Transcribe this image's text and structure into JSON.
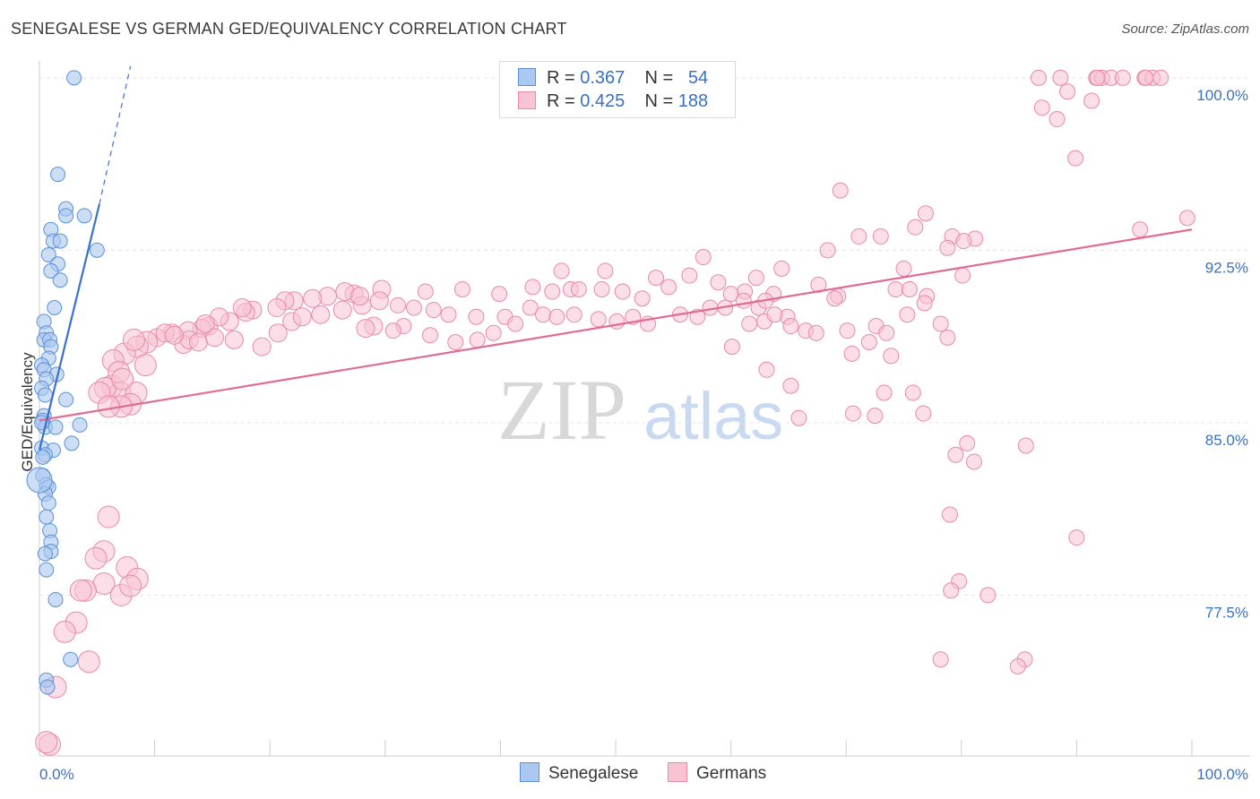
{
  "title": "SENEGALESE VS GERMAN GED/EQUIVALENCY CORRELATION CHART",
  "source": "Source: ZipAtlas.com",
  "watermark": {
    "zip": "ZIP",
    "atlas": "atlas"
  },
  "legend": {
    "row1": {
      "r_label": "R =",
      "r_value": "0.367",
      "n_label": "N =",
      "n_value": "54"
    },
    "row2": {
      "r_label": "R =",
      "r_value": "0.425",
      "n_label": "N =",
      "n_value": "188"
    }
  },
  "colors": {
    "blue_fill": "#aac8f0",
    "blue_stroke": "#5b8fd6",
    "blue_line": "#3a70d0",
    "pink_fill": "#f8c3d3",
    "pink_stroke": "#e889a8",
    "pink_line": "#e06c95",
    "axis_text": "#3a70c4",
    "grid": "#e3e3e3"
  },
  "chart_data": {
    "type": "scatter",
    "title": "SENEGALESE VS GERMAN GED/EQUIVALENCY CORRELATION CHART",
    "xlabel": "",
    "ylabel": "GED/Equivalency",
    "xlim": [
      0,
      100
    ],
    "ylim": [
      70.5,
      100.5
    ],
    "x_tick_labels": [
      "0.0%",
      "100.0%"
    ],
    "y_ticks": [
      77.5,
      85.0,
      92.5,
      100.0
    ],
    "y_tick_labels": [
      "77.5%",
      "85.0%",
      "92.5%",
      "100.0%"
    ],
    "legend_position": "bottom",
    "series": [
      {
        "name": "Senegalese",
        "r": 0.367,
        "n": 54,
        "trend": {
          "x0": 0.0,
          "y0": 83.8,
          "x1": 5.2,
          "y1": 94.5,
          "dash_to_x": 7.9,
          "dash_to_y": 100.5
        },
        "points": [
          [
            3.0,
            100.0
          ],
          [
            1.6,
            95.8
          ],
          [
            2.3,
            94.3
          ],
          [
            2.3,
            94.0
          ],
          [
            3.9,
            94.0
          ],
          [
            1.0,
            93.4
          ],
          [
            1.2,
            92.9
          ],
          [
            1.8,
            92.9
          ],
          [
            5.0,
            92.5
          ],
          [
            0.8,
            92.3
          ],
          [
            1.6,
            91.9
          ],
          [
            1.0,
            91.6
          ],
          [
            1.8,
            91.2
          ],
          [
            1.3,
            90.0
          ],
          [
            0.4,
            89.4
          ],
          [
            0.6,
            88.9
          ],
          [
            0.4,
            88.6
          ],
          [
            0.9,
            88.6
          ],
          [
            1.0,
            88.3
          ],
          [
            0.8,
            87.8
          ],
          [
            0.2,
            87.5
          ],
          [
            0.4,
            87.3
          ],
          [
            1.5,
            87.1
          ],
          [
            0.6,
            86.9
          ],
          [
            0.2,
            86.5
          ],
          [
            0.5,
            86.2
          ],
          [
            2.3,
            86.0
          ],
          [
            0.4,
            85.3
          ],
          [
            0.3,
            85.1
          ],
          [
            0.5,
            84.8
          ],
          [
            1.4,
            84.8
          ],
          [
            3.5,
            84.9
          ],
          [
            2.8,
            84.1
          ],
          [
            0.2,
            83.9
          ],
          [
            1.2,
            83.8
          ],
          [
            0.5,
            83.6
          ],
          [
            0.3,
            83.5
          ],
          [
            0.3,
            82.7
          ],
          [
            0.6,
            82.3
          ],
          [
            0.8,
            82.2
          ],
          [
            0.5,
            81.9
          ],
          [
            0.8,
            81.5
          ],
          [
            0.6,
            80.9
          ],
          [
            0.9,
            80.3
          ],
          [
            1.0,
            79.8
          ],
          [
            1.0,
            79.4
          ],
          [
            0.5,
            79.3
          ],
          [
            0.6,
            78.6
          ],
          [
            1.4,
            77.3
          ],
          [
            2.7,
            74.7
          ],
          [
            0.6,
            73.8
          ],
          [
            0.7,
            73.5
          ],
          [
            0.0,
            82.5
          ],
          [
            0.2,
            85.0
          ]
        ]
      },
      {
        "name": "Germans",
        "r": 0.425,
        "n": 188,
        "trend": {
          "x0": 0.0,
          "y0": 85.1,
          "x1": 100.0,
          "y1": 93.4
        },
        "points": [
          [
            86.7,
            100.0
          ],
          [
            88.6,
            100.0
          ],
          [
            91.7,
            100.0
          ],
          [
            92.2,
            100.0
          ],
          [
            93.0,
            100.0
          ],
          [
            94.0,
            100.0
          ],
          [
            95.9,
            100.0
          ],
          [
            96.6,
            100.0
          ],
          [
            97.3,
            100.0
          ],
          [
            96.0,
            100.0
          ],
          [
            91.8,
            100.0
          ],
          [
            89.2,
            99.4
          ],
          [
            87.0,
            98.7
          ],
          [
            91.3,
            99.0
          ],
          [
            88.3,
            98.2
          ],
          [
            89.9,
            96.5
          ],
          [
            69.5,
            95.1
          ],
          [
            99.6,
            93.9
          ],
          [
            95.5,
            93.4
          ],
          [
            76.9,
            94.1
          ],
          [
            76.0,
            93.5
          ],
          [
            71.1,
            93.1
          ],
          [
            73.0,
            93.1
          ],
          [
            79.2,
            93.1
          ],
          [
            81.2,
            93.0
          ],
          [
            80.2,
            92.9
          ],
          [
            78.8,
            92.6
          ],
          [
            68.4,
            92.5
          ],
          [
            57.6,
            92.2
          ],
          [
            75.0,
            91.7
          ],
          [
            64.4,
            91.7
          ],
          [
            80.1,
            91.4
          ],
          [
            56.4,
            91.4
          ],
          [
            58.9,
            91.1
          ],
          [
            67.6,
            91.0
          ],
          [
            45.3,
            91.6
          ],
          [
            49.1,
            91.6
          ],
          [
            53.5,
            91.3
          ],
          [
            62.2,
            91.3
          ],
          [
            42.8,
            90.9
          ],
          [
            46.1,
            90.8
          ],
          [
            54.6,
            90.9
          ],
          [
            61.2,
            90.7
          ],
          [
            69.3,
            90.5
          ],
          [
            74.3,
            90.8
          ],
          [
            75.5,
            90.8
          ],
          [
            60.0,
            90.6
          ],
          [
            63.7,
            90.6
          ],
          [
            69.0,
            90.4
          ],
          [
            77.0,
            90.5
          ],
          [
            52.3,
            90.4
          ],
          [
            50.6,
            90.7
          ],
          [
            48.8,
            90.8
          ],
          [
            46.8,
            90.8
          ],
          [
            44.5,
            90.7
          ],
          [
            39.9,
            90.6
          ],
          [
            36.7,
            90.8
          ],
          [
            33.5,
            90.7
          ],
          [
            29.7,
            90.8
          ],
          [
            27.3,
            90.6
          ],
          [
            26.5,
            90.7
          ],
          [
            25.0,
            90.5
          ],
          [
            23.7,
            90.4
          ],
          [
            22.1,
            90.3
          ],
          [
            21.3,
            90.3
          ],
          [
            20.6,
            90.0
          ],
          [
            18.5,
            89.9
          ],
          [
            17.9,
            89.8
          ],
          [
            16.5,
            89.4
          ],
          [
            14.7,
            89.2
          ],
          [
            14.1,
            89.1
          ],
          [
            12.9,
            89.0
          ],
          [
            11.5,
            88.9
          ],
          [
            10.2,
            88.7
          ],
          [
            9.3,
            88.5
          ],
          [
            8.5,
            88.3
          ],
          [
            7.4,
            88.0
          ],
          [
            6.4,
            87.7
          ],
          [
            8.2,
            88.6
          ],
          [
            10.9,
            88.9
          ],
          [
            12.5,
            88.4
          ],
          [
            13.0,
            88.6
          ],
          [
            13.8,
            88.5
          ],
          [
            15.2,
            88.7
          ],
          [
            16.9,
            88.6
          ],
          [
            19.3,
            88.3
          ],
          [
            20.7,
            88.9
          ],
          [
            21.9,
            89.4
          ],
          [
            22.8,
            89.6
          ],
          [
            24.4,
            89.7
          ],
          [
            26.3,
            89.9
          ],
          [
            28.0,
            90.1
          ],
          [
            29.5,
            90.3
          ],
          [
            31.1,
            90.1
          ],
          [
            32.5,
            90.0
          ],
          [
            34.2,
            89.9
          ],
          [
            35.5,
            89.7
          ],
          [
            37.9,
            89.6
          ],
          [
            40.4,
            89.6
          ],
          [
            41.3,
            89.3
          ],
          [
            42.6,
            90.0
          ],
          [
            43.7,
            89.7
          ],
          [
            44.9,
            89.6
          ],
          [
            46.4,
            89.7
          ],
          [
            48.5,
            89.5
          ],
          [
            50.1,
            89.4
          ],
          [
            51.5,
            89.6
          ],
          [
            52.8,
            89.3
          ],
          [
            55.6,
            89.7
          ],
          [
            57.1,
            89.6
          ],
          [
            58.2,
            90.0
          ],
          [
            59.5,
            90.0
          ],
          [
            61.1,
            90.3
          ],
          [
            62.4,
            90.0
          ],
          [
            63.0,
            90.3
          ],
          [
            64.9,
            89.6
          ],
          [
            65.2,
            89.2
          ],
          [
            66.5,
            89.0
          ],
          [
            67.4,
            88.9
          ],
          [
            70.1,
            89.0
          ],
          [
            72.6,
            89.2
          ],
          [
            73.5,
            88.9
          ],
          [
            75.3,
            89.7
          ],
          [
            76.8,
            90.2
          ],
          [
            78.2,
            89.3
          ],
          [
            60.1,
            88.3
          ],
          [
            61.6,
            89.3
          ],
          [
            62.9,
            89.4
          ],
          [
            63.8,
            89.7
          ],
          [
            39.4,
            88.9
          ],
          [
            38.0,
            88.6
          ],
          [
            36.1,
            88.5
          ],
          [
            33.9,
            88.8
          ],
          [
            31.6,
            89.2
          ],
          [
            30.7,
            89.0
          ],
          [
            29.0,
            89.2
          ],
          [
            28.3,
            89.1
          ],
          [
            15.6,
            89.6
          ],
          [
            14.4,
            89.3
          ],
          [
            27.8,
            90.5
          ],
          [
            17.6,
            90.0
          ],
          [
            9.2,
            87.5
          ],
          [
            11.7,
            88.8
          ],
          [
            6.3,
            86.6
          ],
          [
            7.0,
            86.3
          ],
          [
            8.4,
            86.3
          ],
          [
            6.9,
            87.2
          ],
          [
            5.7,
            86.5
          ],
          [
            5.2,
            86.3
          ],
          [
            7.2,
            86.9
          ],
          [
            7.9,
            85.8
          ],
          [
            7.1,
            85.7
          ],
          [
            78.8,
            88.7
          ],
          [
            70.5,
            88.0
          ],
          [
            73.9,
            87.9
          ],
          [
            72.0,
            88.5
          ],
          [
            63.1,
            87.3
          ],
          [
            65.2,
            86.6
          ],
          [
            73.3,
            86.3
          ],
          [
            75.8,
            86.3
          ],
          [
            65.9,
            85.2
          ],
          [
            70.6,
            85.4
          ],
          [
            72.5,
            85.3
          ],
          [
            76.7,
            85.4
          ],
          [
            80.5,
            84.1
          ],
          [
            85.6,
            84.0
          ],
          [
            79.5,
            83.6
          ],
          [
            81.1,
            83.3
          ],
          [
            79.0,
            81.0
          ],
          [
            90.0,
            80.0
          ],
          [
            79.8,
            78.1
          ],
          [
            79.1,
            77.7
          ],
          [
            82.3,
            77.5
          ],
          [
            78.2,
            74.7
          ],
          [
            85.5,
            74.7
          ],
          [
            84.9,
            74.4
          ],
          [
            6.0,
            80.9
          ],
          [
            5.6,
            79.4
          ],
          [
            4.9,
            79.1
          ],
          [
            5.6,
            78.0
          ],
          [
            7.6,
            78.7
          ],
          [
            8.5,
            78.2
          ],
          [
            7.1,
            77.5
          ],
          [
            7.9,
            77.9
          ],
          [
            3.2,
            76.3
          ],
          [
            2.2,
            75.9
          ],
          [
            4.3,
            74.6
          ],
          [
            1.4,
            73.5
          ],
          [
            0.9,
            71.0
          ],
          [
            0.6,
            71.1
          ],
          [
            4.0,
            77.7
          ],
          [
            3.6,
            77.7
          ],
          [
            6.0,
            85.7
          ]
        ]
      }
    ]
  }
}
